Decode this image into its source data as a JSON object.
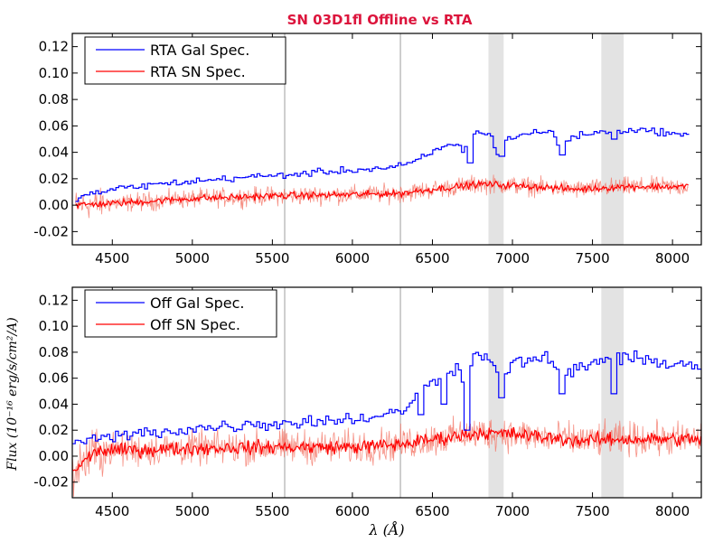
{
  "title": "SN 03D1fl Offline vs RTA",
  "colors": {
    "title": "#dc143c",
    "galaxy": "#0000ff",
    "sn_line": "#ff0000",
    "sn_fill": "#f47c6e",
    "band": "#e3e3e3",
    "skyline": "#b4b4b4"
  },
  "chart_data": [
    {
      "type": "line",
      "id": "rta",
      "xlim": [
        4250,
        8180
      ],
      "ylim": [
        -0.03,
        0.13
      ],
      "xticks": [
        4500,
        5000,
        5500,
        6000,
        6500,
        7000,
        7500,
        8000
      ],
      "xtick_labels": [
        "4500",
        "5000",
        "5500",
        "6000",
        "6500",
        "7000",
        "7500",
        "8000"
      ],
      "yticks": [
        -0.02,
        0.0,
        0.02,
        0.04,
        0.06,
        0.08,
        0.1,
        0.12
      ],
      "ytick_labels": [
        "-0.02",
        "0.00",
        "0.02",
        "0.04",
        "0.06",
        "0.08",
        "0.10",
        "0.12"
      ],
      "xlabel": "",
      "ylabel": "",
      "legend": {
        "location": "upper-left",
        "entries": [
          "RTA Gal Spec.",
          "RTA SN Spec."
        ]
      },
      "shaded_bands": [
        [
          6850,
          6945
        ],
        [
          7555,
          7695
        ]
      ],
      "vlines": [
        5577,
        6300
      ],
      "series": [
        {
          "name": "RTA Gal Spec.",
          "style": "steps",
          "x_range": [
            4270,
            8100
          ],
          "values": [
            [
              4270,
              0.006
            ],
            [
              4500,
              0.012
            ],
            [
              4700,
              0.015
            ],
            [
              5000,
              0.018
            ],
            [
              5300,
              0.021
            ],
            [
              5600,
              0.023
            ],
            [
              5900,
              0.026
            ],
            [
              6200,
              0.028
            ],
            [
              6350,
              0.031
            ],
            [
              6450,
              0.037
            ],
            [
              6500,
              0.041
            ],
            [
              6550,
              0.043
            ],
            [
              6650,
              0.047
            ],
            [
              6690,
              0.04
            ],
            [
              6710,
              0.052
            ],
            [
              6750,
              0.055
            ],
            [
              6850,
              0.054
            ],
            [
              6900,
              0.04
            ],
            [
              6960,
              0.05
            ],
            [
              7100,
              0.055
            ],
            [
              7250,
              0.055
            ],
            [
              7290,
              0.042
            ],
            [
              7340,
              0.05
            ],
            [
              7450,
              0.054
            ],
            [
              7600,
              0.056
            ],
            [
              7700,
              0.057
            ],
            [
              7900,
              0.056
            ],
            [
              8100,
              0.052
            ]
          ],
          "dips": [
            [
              6720,
              0.032
            ],
            [
              6920,
              0.037
            ],
            [
              7300,
              0.038
            ],
            [
              7620,
              0.05
            ]
          ],
          "noise": 0.0022
        },
        {
          "name": "RTA SN Spec.",
          "style": "line-with-noise",
          "x_range": [
            4270,
            8100
          ],
          "values": [
            [
              4270,
              0.0
            ],
            [
              4600,
              0.002
            ],
            [
              5000,
              0.005
            ],
            [
              5500,
              0.007
            ],
            [
              6000,
              0.008
            ],
            [
              6300,
              0.009
            ],
            [
              6500,
              0.012
            ],
            [
              6800,
              0.016
            ],
            [
              7000,
              0.015
            ],
            [
              7400,
              0.012
            ],
            [
              7700,
              0.014
            ],
            [
              8100,
              0.014
            ]
          ],
          "noise": 0.0022,
          "raw_noise": 0.006
        }
      ]
    },
    {
      "type": "line",
      "id": "offline",
      "xlim": [
        4250,
        8180
      ],
      "ylim": [
        -0.032,
        0.13
      ],
      "xticks": [
        4500,
        5000,
        5500,
        6000,
        6500,
        7000,
        7500,
        8000
      ],
      "xtick_labels": [
        "4500",
        "5000",
        "5500",
        "6000",
        "6500",
        "7000",
        "7500",
        "8000"
      ],
      "yticks": [
        -0.02,
        0.0,
        0.02,
        0.04,
        0.06,
        0.08,
        0.1,
        0.12
      ],
      "ytick_labels": [
        "-0.02",
        "0.00",
        "0.02",
        "0.04",
        "0.06",
        "0.08",
        "0.10",
        "0.12"
      ],
      "xlabel": "λ (Å)",
      "ylabel": "Flux (10⁻¹⁶ erg/s/cm²/A)",
      "legend": {
        "location": "upper-left",
        "entries": [
          "Off Gal Spec.",
          "Off SN Spec."
        ]
      },
      "shaded_bands": [
        [
          6850,
          6945
        ],
        [
          7555,
          7695
        ]
      ],
      "vlines": [
        5577,
        6300
      ],
      "series": [
        {
          "name": "Off Gal Spec.",
          "style": "steps",
          "x_range": [
            4250,
            8180
          ],
          "values": [
            [
              4250,
              0.01
            ],
            [
              4450,
              0.014
            ],
            [
              4700,
              0.018
            ],
            [
              5000,
              0.021
            ],
            [
              5300,
              0.024
            ],
            [
              5600,
              0.026
            ],
            [
              5900,
              0.028
            ],
            [
              6200,
              0.031
            ],
            [
              6300,
              0.035
            ],
            [
              6380,
              0.045
            ],
            [
              6450,
              0.052
            ],
            [
              6550,
              0.063
            ],
            [
              6650,
              0.068
            ],
            [
              6700,
              0.058
            ],
            [
              6750,
              0.077
            ],
            [
              6850,
              0.075
            ],
            [
              6950,
              0.06
            ],
            [
              7000,
              0.072
            ],
            [
              7200,
              0.076
            ],
            [
              7300,
              0.06
            ],
            [
              7400,
              0.068
            ],
            [
              7550,
              0.074
            ],
            [
              7700,
              0.075
            ],
            [
              7900,
              0.073
            ],
            [
              8180,
              0.069
            ]
          ],
          "dips": [
            [
              6420,
              0.032
            ],
            [
              6560,
              0.04
            ],
            [
              6710,
              0.02
            ],
            [
              6920,
              0.045
            ],
            [
              7300,
              0.048
            ],
            [
              7620,
              0.048
            ]
          ],
          "noise": 0.0045
        },
        {
          "name": "Off SN Spec.",
          "style": "line-with-noise",
          "x_range": [
            4250,
            8180
          ],
          "values": [
            [
              4250,
              -0.012
            ],
            [
              4400,
              0.004
            ],
            [
              4700,
              0.005
            ],
            [
              5000,
              0.006
            ],
            [
              5500,
              0.007
            ],
            [
              6000,
              0.007
            ],
            [
              6300,
              0.009
            ],
            [
              6500,
              0.013
            ],
            [
              6800,
              0.018
            ],
            [
              7000,
              0.017
            ],
            [
              7400,
              0.012
            ],
            [
              7700,
              0.013
            ],
            [
              8180,
              0.013
            ]
          ],
          "noise": 0.0045,
          "raw_noise": 0.011
        }
      ]
    }
  ]
}
